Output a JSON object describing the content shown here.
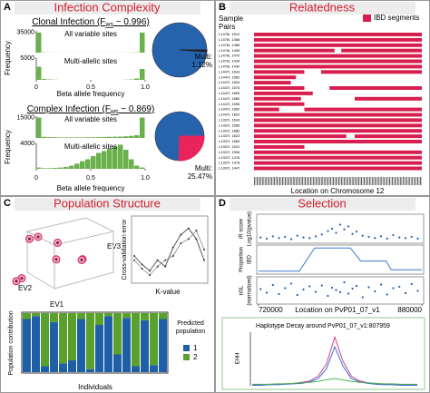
{
  "panels": {
    "a": {
      "letter": "A",
      "title": "Infection Complexity",
      "y_label": "Frequency",
      "x_label": "Beta allele frequency",
      "bins": [
        0,
        0.05,
        0.1,
        0.15,
        0.2,
        0.25,
        0.3,
        0.35,
        0.4,
        0.45,
        0.5,
        0.55,
        0.6,
        0.65,
        0.7,
        0.75,
        0.8,
        0.85,
        0.9,
        0.95,
        1
      ],
      "bar_color": "#6ab04c",
      "pie_color": "#2563ad",
      "clonal": {
        "title": "Clonal Infection (F",
        "sub": "ws",
        "title_end": " ~ 0.996)",
        "xticks": [
          0,
          0.5,
          {
            "value": 1,
            "label": "1.0"
          }
        ],
        "all": {
          "label": "All variable sites",
          "ylim": [
            0,
            38000
          ],
          "yticks": [
            35000
          ],
          "counts": [
            35000,
            400,
            200,
            150,
            100,
            100,
            100,
            100,
            100,
            100,
            100,
            100,
            100,
            100,
            100,
            150,
            200,
            300,
            500,
            35000
          ]
        },
        "multi": {
          "label": "Multi-allelic sites",
          "ylim": [
            0,
            5000
          ],
          "yticks": [
            5000
          ],
          "counts": [
            3000,
            200,
            100,
            50,
            0,
            0,
            0,
            0,
            0,
            0,
            0,
            0,
            0,
            0,
            0,
            0,
            50,
            100,
            300,
            2500
          ]
        },
        "pie": {
          "label": "Multi:",
          "value": 1.12,
          "value_label": "1.12%",
          "color": "#222222"
        }
      },
      "complex": {
        "title": "Complex Infection (F",
        "sub": "ws",
        "title_end": " ~ 0.869)",
        "xticks": [
          0,
          0.5,
          {
            "value": 1,
            "label": "1.0"
          }
        ],
        "all": {
          "label": "All variable sites",
          "ylim": [
            0,
            16000
          ],
          "yticks": [
            15000
          ],
          "counts": [
            15000,
            800,
            600,
            500,
            400,
            400,
            400,
            400,
            400,
            500,
            500,
            600,
            700,
            800,
            900,
            1000,
            1200,
            1500,
            2000,
            15000
          ]
        },
        "multi": {
          "label": "Multi-allelic sites",
          "ylim": [
            0,
            4000
          ],
          "yticks": [
            4000
          ],
          "counts": [
            200,
            100,
            100,
            150,
            200,
            300,
            500,
            800,
            1200,
            1500,
            2000,
            2500,
            2800,
            3200,
            3500,
            3800,
            3000,
            1500,
            500,
            200
          ]
        },
        "pie": {
          "label": "Multi:",
          "value": 25.47,
          "value_label": "25.47%",
          "color": "#e8245a"
        }
      }
    },
    "b": {
      "letter": "B",
      "title": "Relatedness",
      "sample_label": [
        "Sample",
        "Pairs"
      ],
      "legend": "IBD segments",
      "color": "#d81e4e",
      "x_label": "Location on Chromosome 12",
      "xlim": [
        0,
        100
      ],
      "pairs": [
        "L1476I, 1510",
        "L1476I, 1468",
        "L1476I, 1466",
        "L1476I, 1459",
        "L1476I, 1470",
        "L1476I, 1439",
        "L1476I, 1430",
        "L1447I, 1643",
        "L1447I, 1582",
        "L1447I, 1604",
        "L1447I, 1576",
        "L1447I, 1859",
        "L1447I, 1880",
        "L1447I, 1596",
        "L1447I, 1852",
        "L1447I, 1822",
        "L1337I, 1643",
        "L1337I, 1586",
        "L1337I, 1880",
        "L1337I, 1823",
        "L1337I, 1589",
        "L1337I, 1922",
        "L1337I, 1596",
        "L1337I, 1476",
        "L1337I, 1478",
        "L1337I, 1447"
      ],
      "segments": [
        [
          [
            0,
            100
          ]
        ],
        [
          [
            0,
            100
          ]
        ],
        [
          [
            0,
            100
          ]
        ],
        [
          [
            0,
            48
          ],
          [
            52,
            100
          ]
        ],
        [
          [
            0,
            100
          ]
        ],
        [
          [
            0,
            100
          ]
        ],
        [
          [
            0,
            100
          ]
        ],
        [
          [
            0,
            30
          ],
          [
            40,
            100
          ]
        ],
        [
          [
            0,
            25
          ]
        ],
        [
          [
            0,
            22
          ]
        ],
        [
          [
            0,
            30
          ],
          [
            45,
            100
          ]
        ],
        [
          [
            0,
            35
          ]
        ],
        [
          [
            0,
            28
          ],
          [
            60,
            100
          ]
        ],
        [
          [
            0,
            30
          ]
        ],
        [
          [
            0,
            15
          ],
          [
            30,
            100
          ]
        ],
        [
          [
            0,
            100
          ]
        ],
        [
          [
            0,
            100
          ]
        ],
        [
          [
            0,
            100
          ]
        ],
        [
          [
            0,
            100
          ]
        ],
        [
          [
            0,
            55
          ],
          [
            60,
            100
          ]
        ],
        [
          [
            0,
            100
          ]
        ],
        [
          [
            0,
            30
          ]
        ],
        [
          [
            0,
            100
          ]
        ],
        [
          [
            0,
            100
          ]
        ],
        [
          [
            0,
            100
          ]
        ],
        [
          [
            0,
            100
          ]
        ]
      ]
    },
    "c": {
      "letter": "C",
      "title": "Population Structure",
      "ev1": "EV1",
      "ev2": "EV2",
      "ev3": "EV3",
      "pca": [
        [
          -0.5,
          0.6,
          0.8
        ],
        [
          -0.3,
          0.5,
          0.9
        ],
        [
          0.1,
          0.2,
          0.7
        ],
        [
          0.6,
          -0.2,
          0.1
        ],
        [
          0.5,
          -0.3,
          0.0
        ],
        [
          -0.6,
          0.8,
          -0.6
        ],
        [
          -0.7,
          0.9,
          -0.7
        ],
        [
          0.2,
          0.4,
          0.2
        ]
      ],
      "cv": {
        "y_label": "Cross-validation error",
        "x_label": "K-value",
        "k": [
          1,
          2,
          3,
          4,
          5,
          6,
          7,
          8,
          9,
          10
        ],
        "ylim": [
          0.5,
          0.8
        ],
        "series": [
          [
            0.62,
            0.58,
            0.55,
            0.6,
            0.57,
            0.66,
            0.72,
            0.75,
            0.7,
            0.6
          ],
          [
            0.6,
            0.56,
            0.53,
            0.57,
            0.6,
            0.62,
            0.68,
            0.7,
            0.74,
            0.65
          ]
        ]
      },
      "ancestry": {
        "y_label": "Population contribution",
        "x_label": "Individuals",
        "legend_title": [
          "Predicted",
          "population"
        ],
        "series": [
          {
            "name": "1",
            "color": "#1f5fa8",
            "values": [
              0.9,
              0.95,
              0.1,
              0.85,
              0.15,
              0.2,
              0.9,
              0.05,
              0.8,
              0.95,
              0.3,
              0.92,
              0.1,
              0.88,
              0.12,
              0.9
            ]
          },
          {
            "name": "2",
            "color": "#5aa02c",
            "values": [
              0.1,
              0.05,
              0.9,
              0.15,
              0.85,
              0.8,
              0.1,
              0.95,
              0.2,
              0.05,
              0.7,
              0.08,
              0.9,
              0.12,
              0.88,
              0.1
            ]
          }
        ]
      }
    },
    "d": {
      "letter": "D",
      "title": "Selection",
      "x_label": "Location on PvP01_07_v1",
      "xlim": [
        720000,
        880000
      ],
      "xticks": [
        720000,
        880000
      ],
      "point_color": "#1f5fa8",
      "x": [
        722000,
        728000,
        734000,
        740000,
        746000,
        752000,
        758000,
        764000,
        770000,
        776000,
        782000,
        788000,
        792000,
        796000,
        800000,
        804000,
        808000,
        812000,
        816000,
        822000,
        828000,
        834000,
        840000,
        846000,
        852000,
        858000,
        864000,
        870000,
        876000
      ],
      "ir": {
        "label": [
          "iR score",
          "Log10(pvalue)"
        ],
        "ylim": [
          0,
          5
        ],
        "values": [
          1.0,
          0.8,
          1.2,
          0.9,
          1.1,
          0.7,
          1.3,
          1.0,
          0.9,
          1.2,
          1.5,
          2.1,
          2.5,
          1.8,
          3.2,
          2.4,
          2.9,
          1.6,
          2.0,
          1.3,
          1.1,
          0.9,
          1.2,
          0.8,
          1.4,
          1.0,
          0.9,
          1.1,
          0.8
        ]
      },
      "ibd": {
        "label": [
          "Proportion",
          "IBD"
        ],
        "ylim": [
          0,
          1
        ],
        "x": [
          720000,
          760000,
          775000,
          810000,
          820000,
          845000,
          850000,
          880000
        ],
        "values": [
          0.1,
          0.1,
          0.9,
          0.9,
          0.45,
          0.45,
          0.15,
          0.15
        ]
      },
      "nsl": {
        "label": [
          "nSL",
          "(normalized)"
        ],
        "ylim": [
          -3,
          3
        ],
        "values": [
          0.3,
          -0.5,
          1.2,
          -0.8,
          0.5,
          1.5,
          -1.0,
          0.2,
          0.9,
          -0.3,
          1.1,
          -1.2,
          0.6,
          0.1,
          -0.4,
          1.8,
          -0.7,
          0.4,
          1.0,
          -1.5,
          0.7,
          -0.2,
          1.3,
          -0.9,
          0.5,
          0.8,
          -0.6,
          1.4,
          -0.1
        ]
      },
      "ehh": {
        "title": "Haplotype Decay around PvP01_07_v1:807959",
        "y_label": "EHH",
        "ylim": [
          0,
          1.1
        ],
        "x": [
          0,
          1,
          2,
          3,
          4,
          5,
          6,
          7,
          8,
          9,
          10,
          11,
          12,
          13,
          14,
          15,
          16,
          17,
          18,
          19,
          20
        ],
        "series": [
          {
            "color": "#d0408a",
            "values": [
              0.02,
              0.02,
              0.03,
              0.03,
              0.04,
              0.05,
              0.07,
              0.1,
              0.2,
              0.45,
              1.0,
              0.5,
              0.2,
              0.1,
              0.06,
              0.04,
              0.03,
              0.03,
              0.02,
              0.02,
              0.02
            ]
          },
          {
            "color": "#3a6fd0",
            "values": [
              0.01,
              0.01,
              0.02,
              0.02,
              0.03,
              0.04,
              0.05,
              0.08,
              0.15,
              0.35,
              0.8,
              0.4,
              0.15,
              0.08,
              0.05,
              0.03,
              0.02,
              0.02,
              0.01,
              0.01,
              0.01
            ]
          },
          {
            "color": "#4caf50",
            "values": [
              0.03,
              0.03,
              0.03,
              0.04,
              0.04,
              0.05,
              0.06,
              0.07,
              0.09,
              0.12,
              0.15,
              0.12,
              0.09,
              0.07,
              0.06,
              0.05,
              0.04,
              0.04,
              0.03,
              0.03,
              0.03
            ]
          }
        ]
      }
    }
  }
}
